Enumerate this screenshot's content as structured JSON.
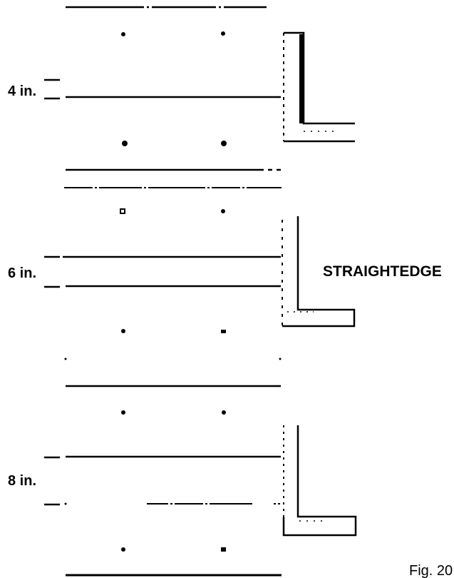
{
  "labels": {
    "spacing_4": "4 in.",
    "spacing_6": "6 in.",
    "spacing_8": "8 in.",
    "straightedge": "STRAIGHTEDGE",
    "figure": "Fig. 20"
  },
  "colors": {
    "ink": "#000000",
    "background": "#ffffff"
  }
}
